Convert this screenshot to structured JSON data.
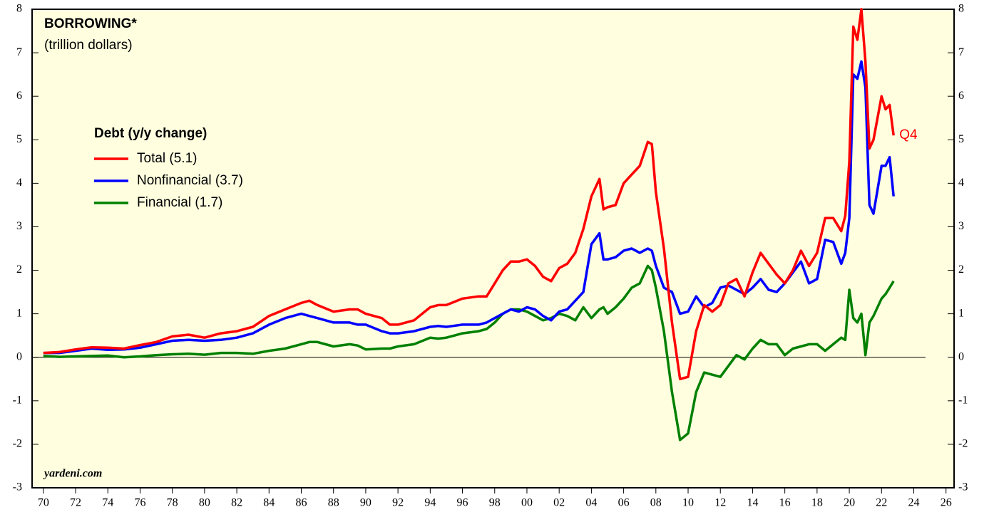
{
  "chart_data": {
    "type": "line",
    "title": "BORROWING*",
    "subtitle": "(trillion dollars)",
    "legend_title": "Debt (y/y change)",
    "annotation": "Q4",
    "source": "yardeni.com",
    "x": [
      1970,
      1971,
      1972,
      1973,
      1974,
      1975,
      1976,
      1977,
      1978,
      1979,
      1980,
      1981,
      1982,
      1983,
      1984,
      1985,
      1986,
      1986.5,
      1987,
      1988,
      1989,
      1989.5,
      1990,
      1991,
      1991.5,
      1992,
      1993,
      1994,
      1994.5,
      1995,
      1996,
      1997,
      1997.5,
      1998,
      1998.5,
      1999,
      1999.5,
      2000,
      2000.5,
      2001,
      2001.5,
      2002,
      2002.5,
      2003,
      2003.5,
      2004,
      2004.5,
      2004.75,
      2005,
      2005.5,
      2006,
      2006.5,
      2007,
      2007.5,
      2007.75,
      2008,
      2008.5,
      2009,
      2009.5,
      2010,
      2010.5,
      2011,
      2011.5,
      2012,
      2012.5,
      2013,
      2013.5,
      2014,
      2014.5,
      2015,
      2015.5,
      2016,
      2016.5,
      2017,
      2017.5,
      2018,
      2018.5,
      2019,
      2019.5,
      2019.75,
      2020,
      2020.25,
      2020.5,
      2020.75,
      2021,
      2021.25,
      2021.5,
      2022,
      2022.25,
      2022.5,
      2022.75
    ],
    "series": [
      {
        "name": "Total (5.1)",
        "color": "#ff0000",
        "values": [
          0.1,
          0.12,
          0.18,
          0.23,
          0.22,
          0.2,
          0.28,
          0.35,
          0.48,
          0.52,
          0.45,
          0.55,
          0.6,
          0.7,
          0.95,
          1.1,
          1.25,
          1.3,
          1.2,
          1.05,
          1.1,
          1.1,
          1.0,
          0.9,
          0.75,
          0.75,
          0.85,
          1.15,
          1.2,
          1.2,
          1.35,
          1.4,
          1.4,
          1.7,
          2.0,
          2.2,
          2.2,
          2.25,
          2.1,
          1.85,
          1.75,
          2.05,
          2.15,
          2.4,
          2.95,
          3.7,
          4.1,
          3.4,
          3.45,
          3.5,
          4.0,
          4.2,
          4.4,
          4.95,
          4.9,
          3.8,
          2.5,
          0.8,
          -0.5,
          -0.45,
          0.6,
          1.2,
          1.05,
          1.2,
          1.7,
          1.8,
          1.4,
          1.95,
          2.4,
          2.15,
          1.9,
          1.7,
          2.0,
          2.45,
          2.1,
          2.4,
          3.2,
          3.2,
          2.9,
          3.25,
          4.5,
          7.6,
          7.3,
          8.0,
          6.8,
          4.8,
          5.0,
          6.0,
          5.7,
          5.8,
          5.1
        ]
      },
      {
        "name": "Nonfinancial (3.7)",
        "color": "#0000ff",
        "values": [
          0.1,
          0.1,
          0.15,
          0.2,
          0.17,
          0.18,
          0.22,
          0.3,
          0.38,
          0.4,
          0.38,
          0.4,
          0.45,
          0.55,
          0.75,
          0.9,
          1.0,
          0.95,
          0.9,
          0.8,
          0.8,
          0.75,
          0.75,
          0.6,
          0.55,
          0.55,
          0.6,
          0.7,
          0.72,
          0.7,
          0.75,
          0.75,
          0.8,
          0.9,
          1.0,
          1.1,
          1.05,
          1.15,
          1.1,
          0.95,
          0.85,
          1.05,
          1.1,
          1.3,
          1.5,
          2.6,
          2.85,
          2.25,
          2.25,
          2.3,
          2.45,
          2.5,
          2.4,
          2.5,
          2.45,
          2.1,
          1.6,
          1.5,
          1.0,
          1.05,
          1.4,
          1.15,
          1.25,
          1.6,
          1.65,
          1.55,
          1.45,
          1.6,
          1.8,
          1.55,
          1.5,
          1.7,
          1.95,
          2.2,
          1.7,
          1.8,
          2.7,
          2.65,
          2.15,
          2.4,
          3.2,
          6.5,
          6.4,
          6.8,
          6.2,
          3.5,
          3.3,
          4.4,
          4.4,
          4.6,
          3.7
        ]
      },
      {
        "name": "Financial (1.7)",
        "color": "#008000",
        "values": [
          0.03,
          0.01,
          0.02,
          0.03,
          0.04,
          0.0,
          0.02,
          0.05,
          0.07,
          0.08,
          0.06,
          0.1,
          0.1,
          0.08,
          0.15,
          0.2,
          0.3,
          0.35,
          0.35,
          0.25,
          0.3,
          0.27,
          0.18,
          0.2,
          0.2,
          0.25,
          0.3,
          0.45,
          0.43,
          0.45,
          0.55,
          0.6,
          0.65,
          0.8,
          1.0,
          1.1,
          1.1,
          1.05,
          0.95,
          0.85,
          0.9,
          1.0,
          0.95,
          0.85,
          1.15,
          0.9,
          1.1,
          1.15,
          1.0,
          1.15,
          1.35,
          1.6,
          1.7,
          2.1,
          2.0,
          1.6,
          0.6,
          -0.8,
          -1.9,
          -1.75,
          -0.8,
          -0.35,
          -0.4,
          -0.45,
          -0.2,
          0.05,
          -0.05,
          0.2,
          0.4,
          0.3,
          0.3,
          0.05,
          0.2,
          0.25,
          0.3,
          0.3,
          0.15,
          0.3,
          0.45,
          0.4,
          1.55,
          0.9,
          0.8,
          1.0,
          0.05,
          0.8,
          0.95,
          1.35,
          1.45,
          1.6,
          1.75
        ]
      }
    ],
    "xlim": [
      1969.3,
      2026.5
    ],
    "ylim": [
      -3,
      8
    ],
    "yticks": [
      -3,
      -2,
      -1,
      0,
      1,
      2,
      3,
      4,
      5,
      6,
      7,
      8
    ],
    "xticks": [
      {
        "value": 1970,
        "label": "70"
      },
      {
        "value": 1972,
        "label": "72"
      },
      {
        "value": 1974,
        "label": "74"
      },
      {
        "value": 1976,
        "label": "76"
      },
      {
        "value": 1978,
        "label": "78"
      },
      {
        "value": 1980,
        "label": "80"
      },
      {
        "value": 1982,
        "label": "82"
      },
      {
        "value": 1984,
        "label": "84"
      },
      {
        "value": 1986,
        "label": "86"
      },
      {
        "value": 1988,
        "label": "88"
      },
      {
        "value": 1990,
        "label": "90"
      },
      {
        "value": 1992,
        "label": "92"
      },
      {
        "value": 1994,
        "label": "94"
      },
      {
        "value": 1996,
        "label": "96"
      },
      {
        "value": 1998,
        "label": "98"
      },
      {
        "value": 2000,
        "label": "00"
      },
      {
        "value": 2002,
        "label": "02"
      },
      {
        "value": 2004,
        "label": "04"
      },
      {
        "value": 2006,
        "label": "06"
      },
      {
        "value": 2008,
        "label": "08"
      },
      {
        "value": 2010,
        "label": "10"
      },
      {
        "value": 2012,
        "label": "12"
      },
      {
        "value": 2014,
        "label": "14"
      },
      {
        "value": 2016,
        "label": "16"
      },
      {
        "value": 2018,
        "label": "18"
      },
      {
        "value": 2020,
        "label": "20"
      },
      {
        "value": 2022,
        "label": "22"
      },
      {
        "value": 2024,
        "label": "24"
      },
      {
        "value": 2026,
        "label": "26"
      }
    ],
    "background": "#ffffe0"
  }
}
